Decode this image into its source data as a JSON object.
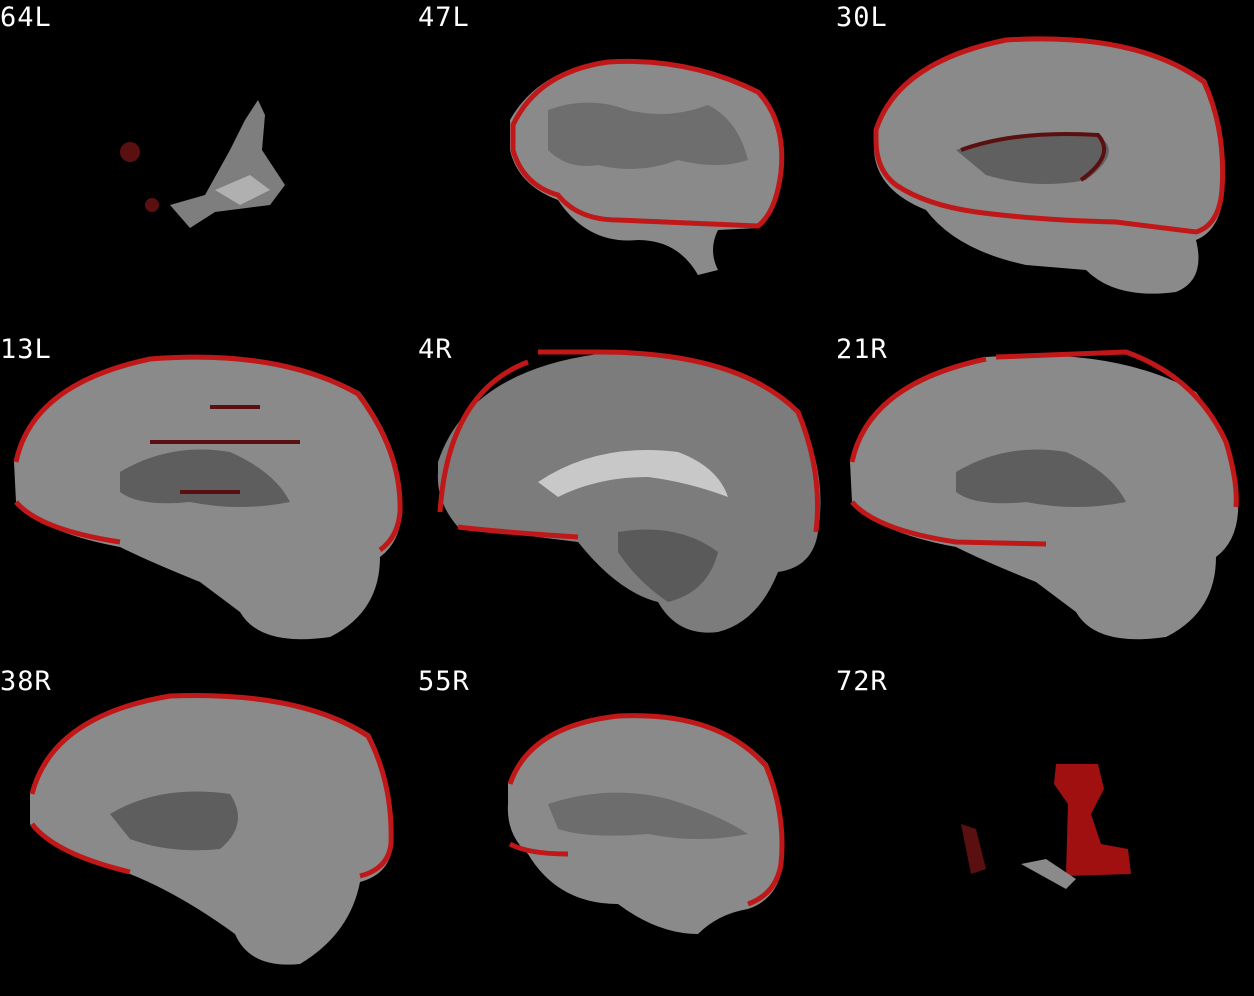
{
  "montage": {
    "slices": [
      {
        "label": "64L"
      },
      {
        "label": "47L"
      },
      {
        "label": "30L"
      },
      {
        "label": "13L"
      },
      {
        "label": "4R"
      },
      {
        "label": "21R"
      },
      {
        "label": "38R"
      },
      {
        "label": "55R"
      },
      {
        "label": "72R"
      }
    ]
  },
  "colors": {
    "background": "#000000",
    "label": "#ffffff",
    "overlay": "#c01818",
    "overlay_dark": "#5a1010",
    "tissue": "#8a8a8a",
    "tissue_dark": "#4a4a4a"
  }
}
